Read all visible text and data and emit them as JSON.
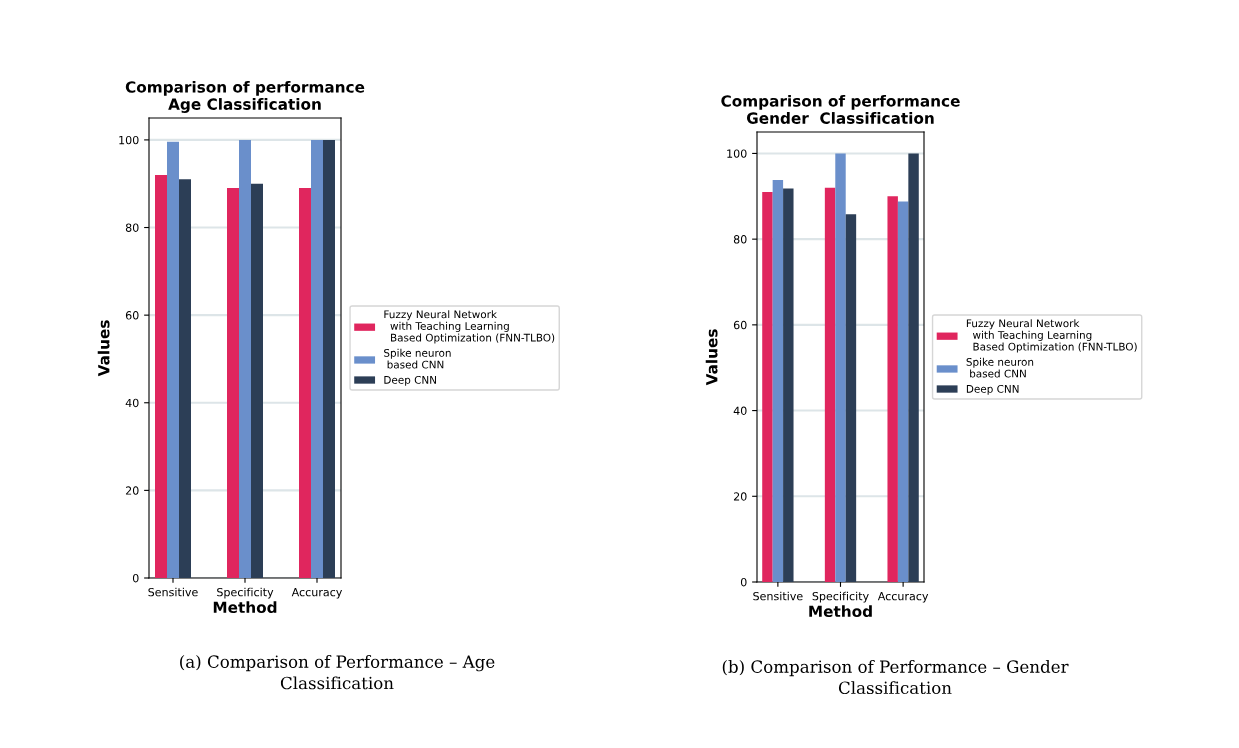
{
  "chart_data": [
    {
      "type": "bar",
      "title": "Comparison of performance\nAge Classification",
      "xlabel": "Method",
      "ylabel": "Values",
      "categories": [
        "Sensitive",
        "Specificity",
        "Accuracy"
      ],
      "series": [
        {
          "name": "Fuzzy Neural Network\n  with Teaching Learning\n  Based Optimization (FNN-TLBO)",
          "color": "#e0265e",
          "values": [
            92,
            89,
            89
          ]
        },
        {
          "name": "Spike neuron\n based CNN",
          "color": "#6a8fcb",
          "values": [
            99.6,
            100,
            100
          ]
        },
        {
          "name": "Deep CNN",
          "color": "#2c3e56",
          "values": [
            91,
            90,
            100
          ]
        }
      ],
      "ylim": [
        0,
        105
      ],
      "yticks": [
        0,
        20,
        40,
        60,
        80,
        100
      ],
      "grid": "y",
      "legend": "right",
      "annotations": [
        "(a) Comparison of Performance – Age\nClassification"
      ]
    },
    {
      "type": "bar",
      "title": "Comparison of performance\nGender  Classification",
      "xlabel": "Method",
      "ylabel": "Values",
      "categories": [
        "Sensitive",
        "Specificity",
        "Accuracy"
      ],
      "series": [
        {
          "name": "Fuzzy Neural Network\n  with Teaching Learning\n  Based Optimization (FNN-TLBO)",
          "color": "#e0265e",
          "values": [
            91,
            92,
            90
          ]
        },
        {
          "name": "Spike neuron\n based CNN",
          "color": "#6a8fcb",
          "values": [
            93.8,
            100,
            88.8
          ]
        },
        {
          "name": "Deep CNN",
          "color": "#2c3e56",
          "values": [
            91.8,
            85.8,
            100
          ]
        }
      ],
      "ylim": [
        0,
        105
      ],
      "yticks": [
        0,
        20,
        40,
        60,
        80,
        100
      ],
      "grid": "y",
      "legend": "right",
      "annotations": [
        "(b) Comparison of Performance – Gender\nClassification"
      ]
    }
  ]
}
